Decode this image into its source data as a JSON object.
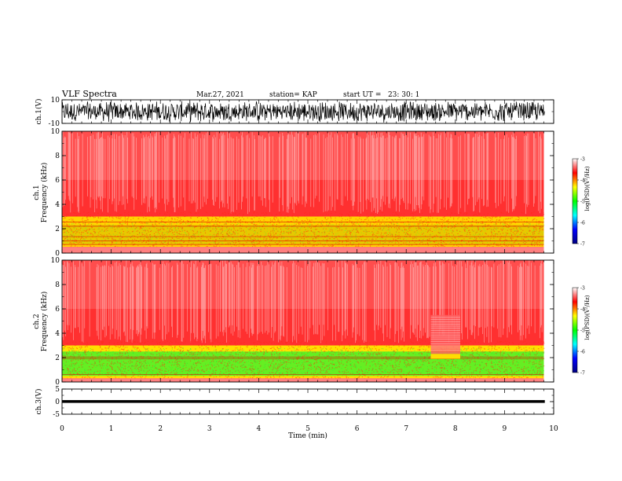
{
  "header": {
    "title": "VLF Spectra",
    "date": "Mar.27, 2021",
    "station": "station= KAP",
    "start_ut": "start UT =   23: 30: 1"
  },
  "chart_data": [
    {
      "type": "line",
      "name": "ch1-waveform",
      "ylabel": "ch.1(V)",
      "ylim": [
        -10,
        10
      ],
      "yticks": [
        "10",
        "-10"
      ],
      "xlim": [
        0,
        10
      ]
    },
    {
      "type": "heatmap",
      "name": "ch1-spectrogram",
      "ylabel": "ch.1\nFrequency (kHz)",
      "ylabel_lines": [
        "ch.1",
        "Frequency (kHz)"
      ],
      "ylim": [
        0,
        10
      ],
      "yticks": [
        "0",
        "2",
        "4",
        "6",
        "8",
        "10"
      ],
      "xlim": [
        0,
        10
      ],
      "data_end_min": 9.8,
      "colorbar": {
        "label": "log(PSD)(V²/Hz)",
        "range": [
          -7,
          -3
        ],
        "ticks": [
          "-3",
          "-4",
          "-5",
          "-6",
          "-7"
        ],
        "colors": [
          "#000080",
          "#0000ff",
          "#00ffff",
          "#00ff00",
          "#ffff00",
          "#ff0000",
          "#ffffff"
        ]
      },
      "bands_khz": {
        "bright_top": 3.0,
        "green_top": 2.3,
        "low_cut": 0.5
      }
    },
    {
      "type": "heatmap",
      "name": "ch2-spectrogram",
      "ylabel": "ch.2\nFrequency (kHz)",
      "ylabel_lines": [
        "ch.2",
        "Frequency (kHz)"
      ],
      "ylim": [
        0,
        10
      ],
      "yticks": [
        "0",
        "2",
        "4",
        "6",
        "8",
        "10"
      ],
      "xlim": [
        0,
        10
      ],
      "data_end_min": 9.8,
      "colorbar": {
        "label": "log(PSD)(V²/Hz)",
        "range": [
          -7,
          -3
        ],
        "ticks": [
          "-3",
          "-4",
          "-5",
          "-6",
          "-7"
        ],
        "colors": [
          "#000080",
          "#0000ff",
          "#00ffff",
          "#00ff00",
          "#ffff00",
          "#ff0000",
          "#ffffff"
        ]
      },
      "bands_khz": {
        "bright_top": 3.0,
        "green_top": 2.5,
        "low_cut": 0.3
      },
      "gap_interval_min": [
        7.5,
        8.1
      ]
    },
    {
      "type": "line",
      "name": "ch3-waveform",
      "ylabel": "ch.3(V)",
      "ylim": [
        -5,
        5
      ],
      "yticks": [
        "5",
        "0",
        "-5"
      ],
      "xlim": [
        0,
        10
      ],
      "xlabel": "Time (min)",
      "xticks": [
        "0",
        "1",
        "2",
        "3",
        "4",
        "5",
        "6",
        "7",
        "8",
        "9",
        "10"
      ]
    }
  ]
}
